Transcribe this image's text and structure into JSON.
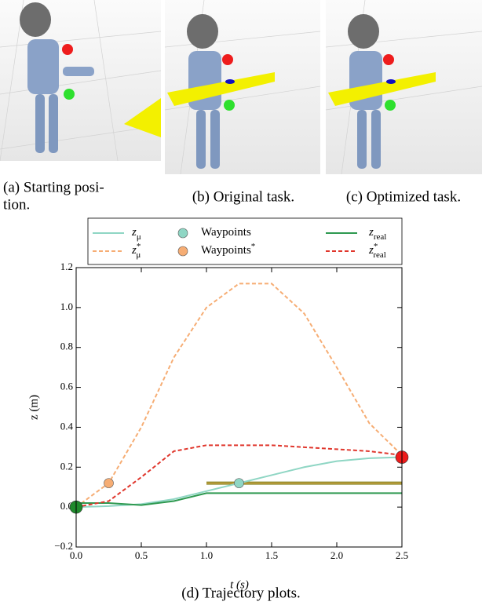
{
  "panels": [
    {
      "caption_lines": [
        "(a)   Starting   posi-",
        "tion."
      ]
    },
    {
      "caption_lines": [
        "(b) Original task."
      ]
    },
    {
      "caption_lines": [
        "(c) Optimized task."
      ]
    }
  ],
  "chart_data": {
    "type": "line",
    "caption": "(d) Trajectory plots.",
    "xlabel": "t (s)",
    "ylabel": "z (m)",
    "x": [
      0,
      0.25,
      0.5,
      0.75,
      1.0,
      1.25,
      1.5,
      1.75,
      2.0,
      2.25,
      2.5
    ],
    "series": [
      {
        "name": "z",
        "subscript": "μ",
        "color": "#8fd6c4",
        "dash": false,
        "values": [
          0,
          0.005,
          0.015,
          0.04,
          0.08,
          0.12,
          0.16,
          0.2,
          0.23,
          0.245,
          0.25
        ]
      },
      {
        "name": "z",
        "subscript": "μ",
        "superscript": "*",
        "color": "#f6ad74",
        "dash": true,
        "values": [
          0,
          0.12,
          0.4,
          0.75,
          1.0,
          1.12,
          1.12,
          0.97,
          0.7,
          0.42,
          0.26
        ]
      },
      {
        "name": "z",
        "subscript": "real",
        "color": "#2e9950",
        "dash": false,
        "values": [
          0.02,
          0.02,
          0.01,
          0.03,
          0.07,
          0.07,
          0.07,
          0.07,
          0.07,
          0.07,
          0.07
        ]
      },
      {
        "name": "z",
        "subscript": "real",
        "superscript": "*",
        "color": "#e0362c",
        "dash": true,
        "values": [
          0,
          0.03,
          0.15,
          0.28,
          0.31,
          0.31,
          0.31,
          0.3,
          0.29,
          0.28,
          0.26
        ]
      }
    ],
    "points": [
      {
        "name": "Waypoints",
        "color": "#8fd6c4",
        "x": [
          1.25
        ],
        "y": [
          0.12
        ]
      },
      {
        "name": "Waypoints",
        "superscript": "*",
        "color": "#f6ad74",
        "x": [
          0.25
        ],
        "y": [
          0.12
        ]
      }
    ],
    "markers": [
      {
        "x": 0,
        "y": 0.0,
        "color": "#1f8a2c"
      },
      {
        "x": 2.5,
        "y": 0.25,
        "color": "#ee1c1c"
      }
    ],
    "hbar": {
      "x": [
        1.0,
        2.5
      ],
      "y": 0.12,
      "color": "#8a8a2a"
    },
    "xlim": [
      0,
      2.5
    ],
    "xticks": [
      {
        "value": 0,
        "label": "0.0"
      },
      0.5,
      {
        "value": 1.0,
        "label": "1.0"
      },
      1.5,
      {
        "value": 2.0,
        "label": "2.0"
      },
      2.5
    ],
    "ylim": [
      -0.2,
      1.2
    ],
    "yticks": [
      {
        "value": -0.2,
        "label": "−0.2"
      },
      {
        "value": 0,
        "label": "0.0"
      },
      0.2,
      0.4,
      0.6,
      0.8,
      {
        "value": 1.0,
        "label": "1.0"
      },
      1.2
    ]
  }
}
